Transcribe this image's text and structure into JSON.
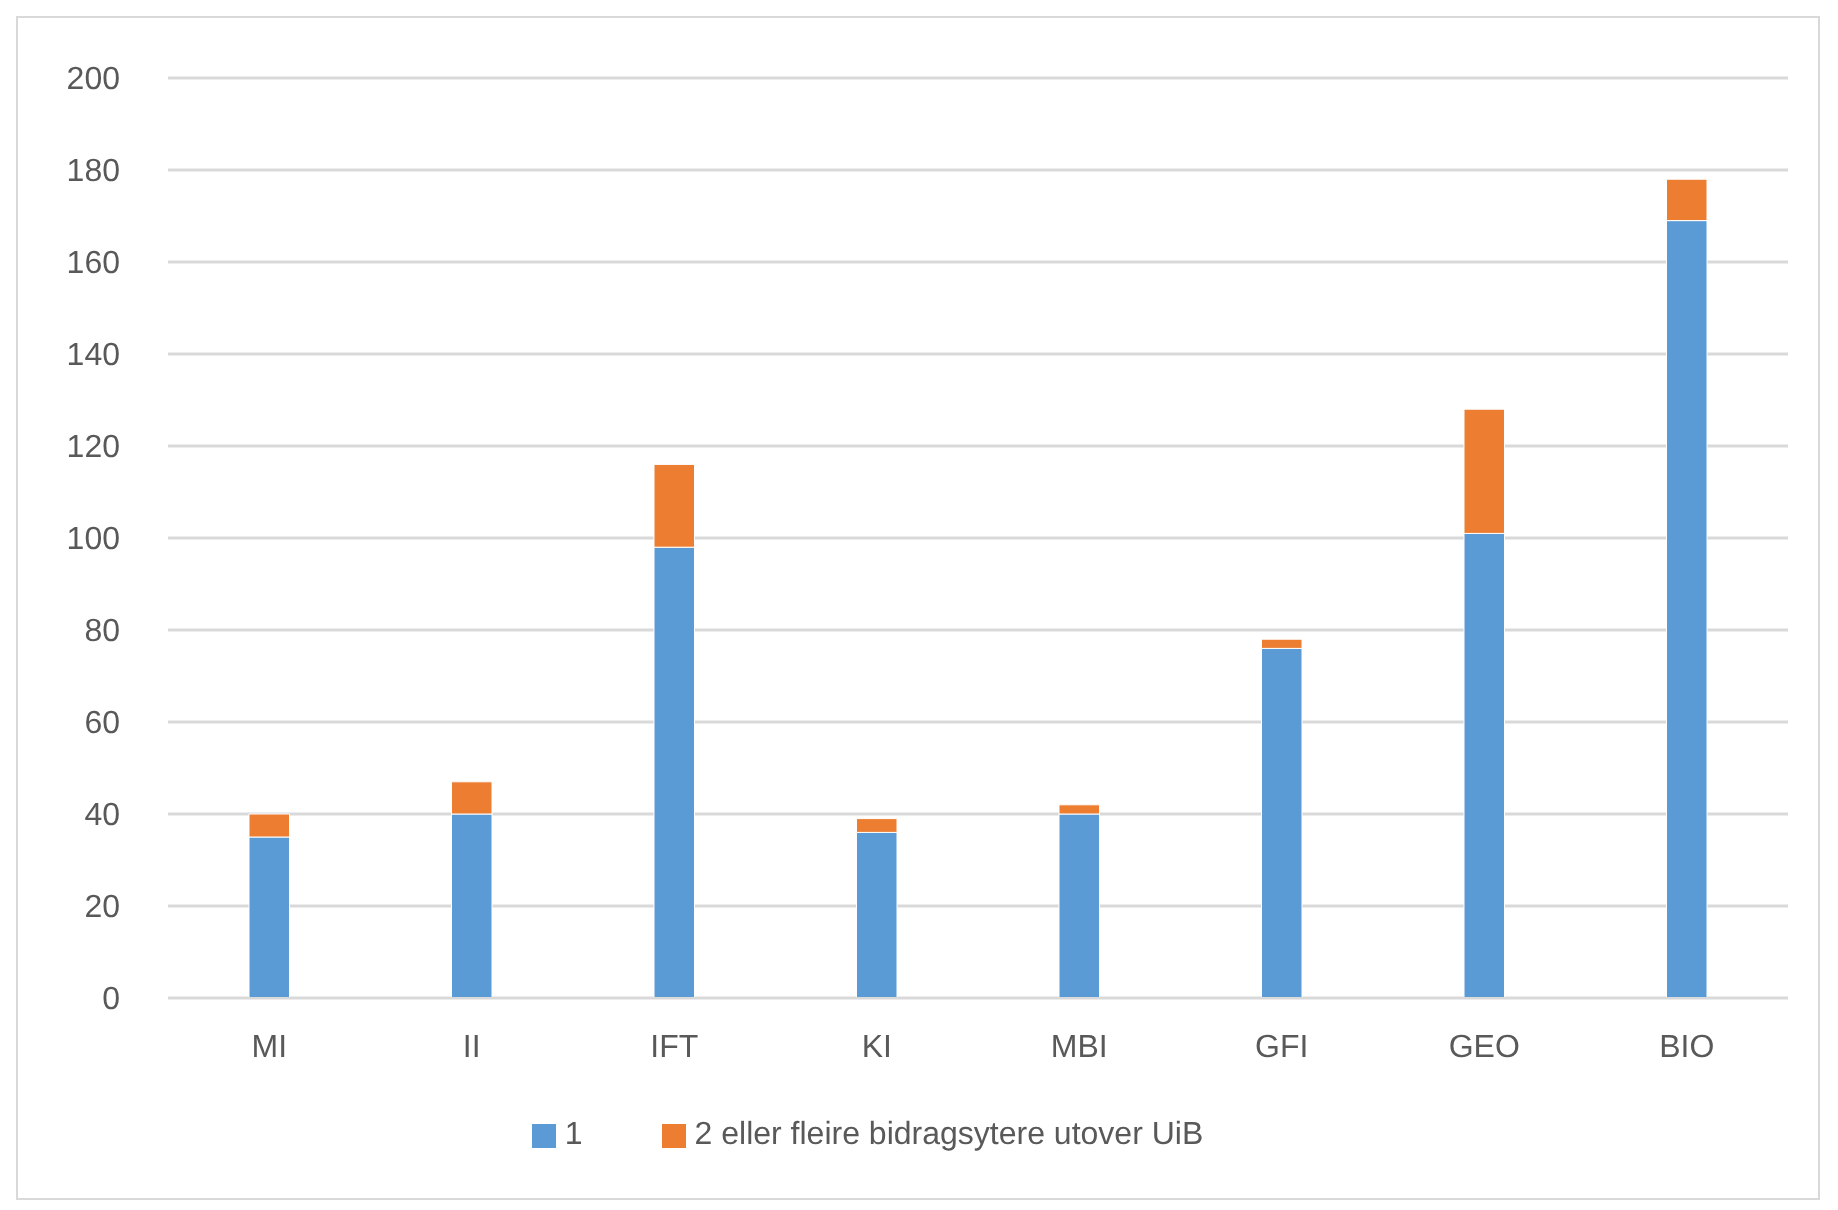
{
  "chart_data": {
    "type": "bar",
    "stacked": true,
    "categories": [
      "MI",
      "II",
      "IFT",
      "KI",
      "MBI",
      "GFI",
      "GEO",
      "BIO"
    ],
    "series": [
      {
        "name": "1",
        "color": "#5b9bd5",
        "values": [
          35,
          40,
          98,
          36,
          40,
          76,
          101,
          169
        ]
      },
      {
        "name": "2 eller fleire bidragsytere utover UiB",
        "color": "#ed7d31",
        "values": [
          5,
          7,
          18,
          3,
          2,
          2,
          27,
          9
        ]
      }
    ],
    "ylim": [
      0,
      200
    ],
    "yticks": [
      0,
      20,
      40,
      60,
      80,
      100,
      120,
      140,
      160,
      180,
      200
    ],
    "grid": "y",
    "legend": "bottom"
  }
}
